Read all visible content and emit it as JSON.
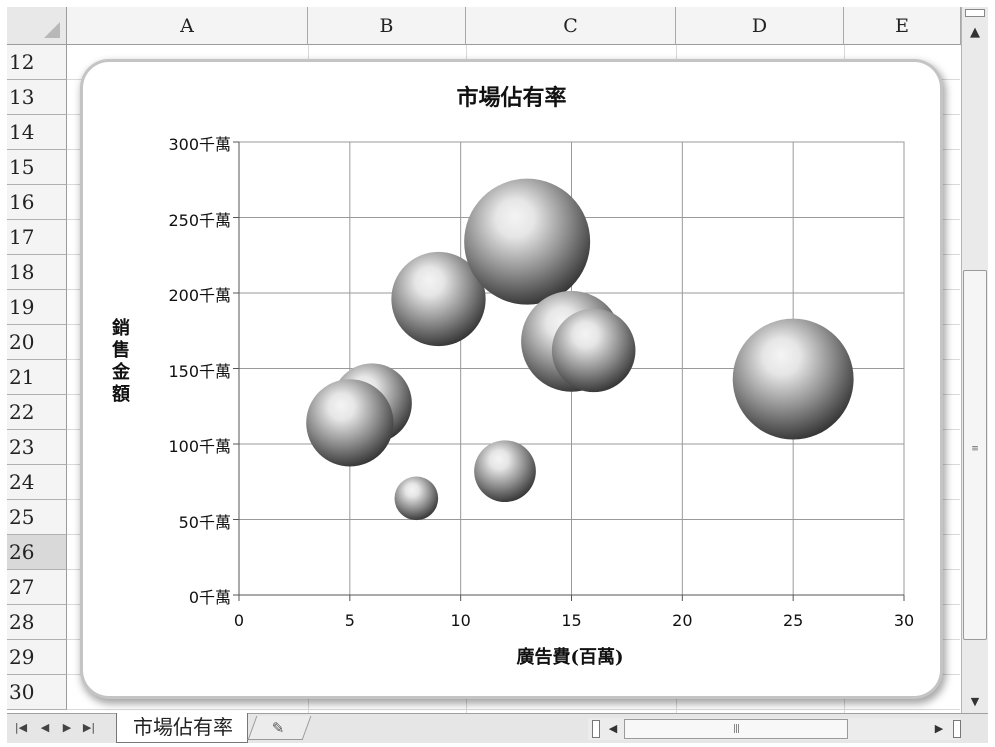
{
  "spreadsheet": {
    "columns": [
      "A",
      "B",
      "C",
      "D",
      "E"
    ],
    "rows": [
      "12",
      "13",
      "14",
      "15",
      "16",
      "17",
      "18",
      "19",
      "20",
      "21",
      "22",
      "23",
      "24",
      "25",
      "26",
      "27",
      "28",
      "29",
      "30"
    ],
    "selected_row": "26",
    "sheet_tab": "市場佔有率"
  },
  "chart_data": {
    "type": "bubble",
    "title": "市場佔有率",
    "xlabel": "廣告費(百萬)",
    "ylabel": "銷售金額",
    "xlim": [
      0,
      30
    ],
    "ylim": [
      0,
      300
    ],
    "x_ticks": [
      "0",
      "5",
      "10",
      "15",
      "20",
      "25",
      "30"
    ],
    "y_ticks": [
      "0千萬",
      "50千萬",
      "100千萬",
      "150千萬",
      "200千萬",
      "250千萬",
      "300千萬"
    ],
    "grid": true,
    "points": [
      {
        "x": 6,
        "y": 127,
        "size": 1.0
      },
      {
        "x": 5,
        "y": 114,
        "size": 1.2
      },
      {
        "x": 8,
        "y": 64,
        "size": 0.3
      },
      {
        "x": 9,
        "y": 196,
        "size": 1.4
      },
      {
        "x": 12,
        "y": 82,
        "size": 0.6
      },
      {
        "x": 13,
        "y": 234,
        "size": 2.5
      },
      {
        "x": 15,
        "y": 168,
        "size": 1.6
      },
      {
        "x": 16,
        "y": 162,
        "size": 1.1
      },
      {
        "x": 25,
        "y": 143,
        "size": 2.3
      }
    ],
    "colors": {
      "bubble_light": "#e6e6e6",
      "bubble_mid": "#8a8a8a",
      "bubble_dark": "#2e2e2e",
      "bubble_highlight": "#f4f4f4"
    }
  }
}
